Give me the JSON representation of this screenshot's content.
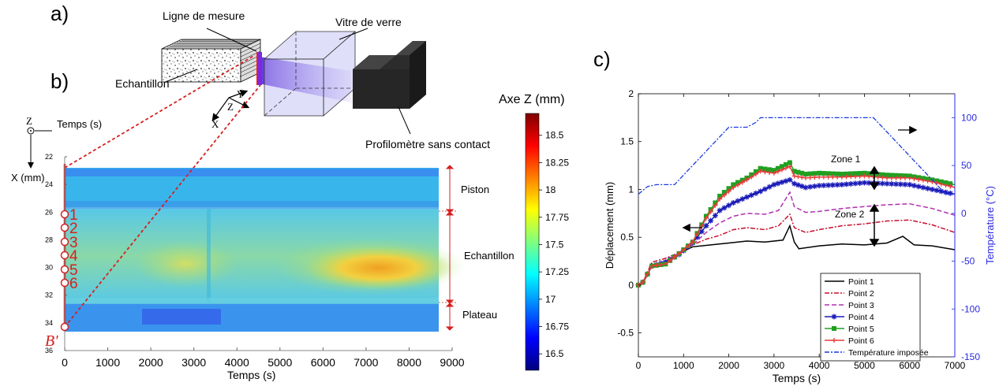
{
  "panels": {
    "a": "a)",
    "b": "b)",
    "c": "c)"
  },
  "schematic": {
    "measure_line": "Ligne de mesure",
    "glass": "Vitre de verre",
    "sample": "Echantillon",
    "profilometer": "Profilomètre sans contact",
    "axis_y": "Y",
    "axis_z": "Z",
    "axis_x": "X"
  },
  "map": {
    "corner_z": "Z",
    "xaxis_title": "Temps (s)",
    "yaxis_title": "X (mm)",
    "colorbar_title": "Axe Z (mm)",
    "bottom_xlabel": "Temps (s)",
    "zones": {
      "piston": "Piston",
      "sample": "Echantillon",
      "plateau": "Plateau"
    },
    "point_labels": [
      "1",
      "2",
      "3",
      "4",
      "5",
      "6"
    ],
    "b_prime": "B'",
    "colors": {
      "red": "#d62020"
    }
  },
  "chart_data": [
    {
      "type": "heatmap",
      "x_ticks": [
        0,
        1000,
        2000,
        3000,
        4000,
        5000,
        6000,
        7000,
        8000,
        9000
      ],
      "y_ticks": [
        22,
        24,
        26,
        28,
        30,
        32,
        34,
        36
      ],
      "xlim": [
        0,
        9000
      ],
      "ylim": [
        36,
        22
      ],
      "colorbar_ticks": [
        18.5,
        18.25,
        18,
        17.75,
        17.5,
        17.25,
        17,
        16.75,
        16.5
      ],
      "colorbar_range": [
        16.35,
        18.7
      ],
      "colormap": "jet",
      "xlabel": "Temps (s)",
      "ylabel": "X (mm)",
      "colorbar_label": "Axe Z (mm)"
    },
    {
      "type": "line",
      "xlabel": "Temps (s)",
      "ylabel": "Déplacement (mm)",
      "y2label": "Température (°C)",
      "xlim": [
        0,
        7000
      ],
      "ylim": [
        -0.75,
        2
      ],
      "y2lim": [
        -150,
        125
      ],
      "x_ticks": [
        0,
        1000,
        2000,
        3000,
        4000,
        5000,
        6000,
        7000
      ],
      "y_ticks": [
        -0.5,
        0,
        0.5,
        1,
        1.5,
        2
      ],
      "y2_ticks": [
        -150,
        -100,
        -50,
        0,
        50,
        100
      ],
      "annotations": [
        "Zone 1",
        "Zone 2"
      ],
      "legend_position": "bottom-right",
      "series": [
        {
          "name": "Point 1",
          "color": "#000000",
          "dash": "",
          "marker": "",
          "axis": "left",
          "points": [
            [
              0,
              0
            ],
            [
              100,
              0.02
            ],
            [
              300,
              0.2
            ],
            [
              600,
              0.25
            ],
            [
              900,
              0.33
            ],
            [
              1200,
              0.4
            ],
            [
              1600,
              0.42
            ],
            [
              2000,
              0.44
            ],
            [
              2400,
              0.46
            ],
            [
              2800,
              0.45
            ],
            [
              3200,
              0.47
            ],
            [
              3350,
              0.62
            ],
            [
              3450,
              0.45
            ],
            [
              3550,
              0.38
            ],
            [
              4000,
              0.41
            ],
            [
              4500,
              0.43
            ],
            [
              5000,
              0.42
            ],
            [
              5500,
              0.44
            ],
            [
              5850,
              0.51
            ],
            [
              6100,
              0.42
            ],
            [
              6500,
              0.41
            ],
            [
              7000,
              0.37
            ]
          ]
        },
        {
          "name": "Point 2",
          "color": "#c8102e",
          "dash": "6,2,2,2",
          "marker": "",
          "axis": "left",
          "points": [
            [
              0,
              0
            ],
            [
              100,
              0.03
            ],
            [
              300,
              0.24
            ],
            [
              600,
              0.28
            ],
            [
              900,
              0.34
            ],
            [
              1200,
              0.42
            ],
            [
              1500,
              0.48
            ],
            [
              1800,
              0.52
            ],
            [
              2100,
              0.58
            ],
            [
              2400,
              0.6
            ],
            [
              2800,
              0.58
            ],
            [
              3100,
              0.62
            ],
            [
              3350,
              0.74
            ],
            [
              3450,
              0.6
            ],
            [
              3700,
              0.55
            ],
            [
              4000,
              0.58
            ],
            [
              4500,
              0.62
            ],
            [
              5000,
              0.64
            ],
            [
              5500,
              0.67
            ],
            [
              6000,
              0.68
            ],
            [
              6500,
              0.63
            ],
            [
              7000,
              0.55
            ]
          ]
        },
        {
          "name": "Point 3",
          "color": "#b030b0",
          "dash": "6,3",
          "marker": "",
          "axis": "left",
          "points": [
            [
              0,
              0
            ],
            [
              100,
              0.03
            ],
            [
              300,
              0.2
            ],
            [
              600,
              0.25
            ],
            [
              900,
              0.32
            ],
            [
              1200,
              0.42
            ],
            [
              1500,
              0.55
            ],
            [
              1800,
              0.65
            ],
            [
              2100,
              0.72
            ],
            [
              2400,
              0.75
            ],
            [
              2800,
              0.74
            ],
            [
              3100,
              0.78
            ],
            [
              3350,
              0.97
            ],
            [
              3450,
              0.82
            ],
            [
              3700,
              0.76
            ],
            [
              4000,
              0.77
            ],
            [
              4500,
              0.8
            ],
            [
              5000,
              0.82
            ],
            [
              5500,
              0.84
            ],
            [
              6000,
              0.85
            ],
            [
              6500,
              0.8
            ],
            [
              7000,
              0.73
            ]
          ]
        },
        {
          "name": "Point 4",
          "color": "#1a1ab8",
          "dash": "",
          "marker": "star",
          "axis": "left",
          "points": [
            [
              0,
              0
            ],
            [
              100,
              0.03
            ],
            [
              300,
              0.2
            ],
            [
              600,
              0.24
            ],
            [
              900,
              0.32
            ],
            [
              1200,
              0.44
            ],
            [
              1500,
              0.62
            ],
            [
              1800,
              0.78
            ],
            [
              2100,
              0.86
            ],
            [
              2400,
              0.92
            ],
            [
              2700,
              0.98
            ],
            [
              3000,
              1.05
            ],
            [
              3350,
              1.1
            ],
            [
              3450,
              1.06
            ],
            [
              3700,
              1.02
            ],
            [
              4000,
              1.04
            ],
            [
              4500,
              1.05
            ],
            [
              5000,
              1.07
            ],
            [
              5500,
              1.06
            ],
            [
              6000,
              1.05
            ],
            [
              6500,
              1.0
            ],
            [
              7000,
              0.95
            ]
          ]
        },
        {
          "name": "Point 5",
          "color": "#20a020",
          "dash": "",
          "marker": "square",
          "axis": "left",
          "points": [
            [
              0,
              0
            ],
            [
              100,
              0.03
            ],
            [
              300,
              0.2
            ],
            [
              600,
              0.22
            ],
            [
              900,
              0.33
            ],
            [
              1200,
              0.45
            ],
            [
              1500,
              0.72
            ],
            [
              1800,
              0.93
            ],
            [
              2100,
              1.05
            ],
            [
              2400,
              1.12
            ],
            [
              2700,
              1.22
            ],
            [
              3000,
              1.2
            ],
            [
              3350,
              1.28
            ],
            [
              3450,
              1.19
            ],
            [
              3700,
              1.16
            ],
            [
              4000,
              1.17
            ],
            [
              4500,
              1.16
            ],
            [
              5000,
              1.17
            ],
            [
              5500,
              1.15
            ],
            [
              6000,
              1.14
            ],
            [
              6500,
              1.1
            ],
            [
              7000,
              1.05
            ]
          ]
        },
        {
          "name": "Point 6",
          "color": "#e83a3a",
          "dash": "",
          "marker": "tri",
          "axis": "left",
          "points": [
            [
              0,
              0
            ],
            [
              100,
              0.03
            ],
            [
              300,
              0.2
            ],
            [
              600,
              0.22
            ],
            [
              900,
              0.33
            ],
            [
              1200,
              0.45
            ],
            [
              1500,
              0.7
            ],
            [
              1800,
              0.9
            ],
            [
              2100,
              1.02
            ],
            [
              2400,
              1.1
            ],
            [
              2700,
              1.19
            ],
            [
              3000,
              1.17
            ],
            [
              3350,
              1.24
            ],
            [
              3450,
              1.14
            ],
            [
              3700,
              1.12
            ],
            [
              4000,
              1.13
            ],
            [
              4500,
              1.13
            ],
            [
              5000,
              1.14
            ],
            [
              5500,
              1.12
            ],
            [
              6000,
              1.12
            ],
            [
              6500,
              1.08
            ],
            [
              7000,
              1.02
            ]
          ]
        },
        {
          "name": "Température imposée",
          "color": "#1a3ae0",
          "dash": "6,2,2,2",
          "marker": "",
          "axis": "right",
          "points": [
            [
              0,
              20
            ],
            [
              200,
              28
            ],
            [
              400,
              30
            ],
            [
              800,
              30
            ],
            [
              1200,
              50
            ],
            [
              1600,
              70
            ],
            [
              2000,
              90
            ],
            [
              2400,
              90
            ],
            [
              2600,
              95
            ],
            [
              2700,
              100
            ],
            [
              5200,
              100
            ],
            [
              6800,
              20
            ],
            [
              7000,
              20
            ]
          ]
        }
      ]
    }
  ]
}
